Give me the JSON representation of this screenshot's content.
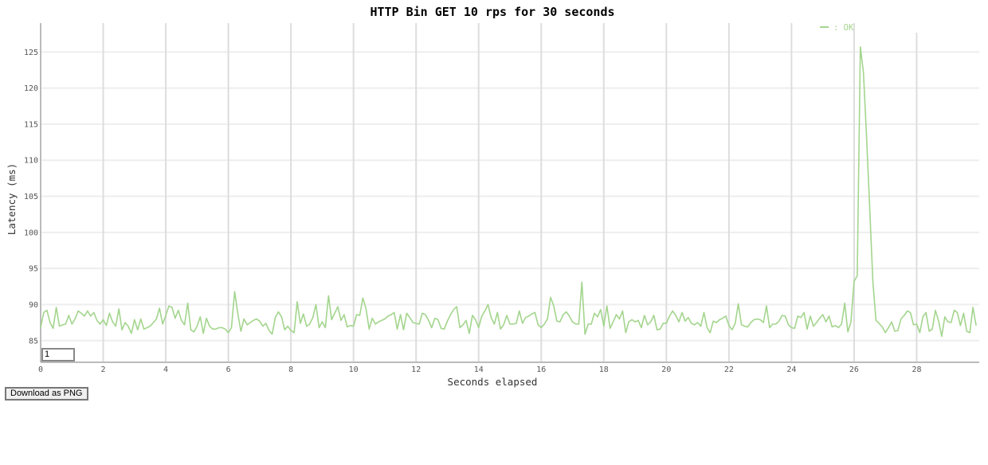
{
  "controls": {
    "smoothing_value": "1",
    "download_label": "Download as PNG"
  },
  "colors": {
    "series_ok": "#a3d58d",
    "grid_major": "#dddddd",
    "grid_minor": "#eeeeee",
    "axis": "#bbbbbb"
  },
  "chart_data": {
    "type": "line",
    "title": "HTTP Bin GET 10 rps for 30 seconds",
    "xlabel": "Seconds elapsed",
    "ylabel": "Latency (ms)",
    "xlim": [
      0,
      30
    ],
    "ylim": [
      82,
      129
    ],
    "xticks": [
      "0",
      "2",
      "4",
      "6",
      "8",
      "10",
      "12",
      "14",
      "16",
      "18",
      "20",
      "22",
      "24",
      "26",
      "28"
    ],
    "yticks": [
      "85",
      "90",
      "95",
      "100",
      "105",
      "110",
      "115",
      "120",
      "125"
    ],
    "grid": true,
    "legend_position": "top-right",
    "legend": [
      {
        "name": "OK"
      }
    ],
    "legend_prefix": ": OK",
    "series": [
      {
        "name": "OK",
        "x": [
          0,
          0.1,
          0.2,
          0.3,
          0.4,
          0.5,
          0.6,
          0.7,
          0.8,
          0.9,
          1.0,
          1.1,
          1.2,
          1.3,
          1.4,
          1.5,
          1.6,
          1.7,
          1.8,
          1.9,
          2.0,
          2.1,
          2.2,
          2.3,
          2.4,
          2.5,
          2.6,
          2.7,
          2.8,
          2.9,
          3.0,
          3.1,
          3.2,
          3.3,
          3.4,
          3.5,
          3.6,
          3.7,
          3.8,
          3.9,
          4.0,
          4.1,
          4.2,
          4.3,
          4.4,
          4.5,
          4.6,
          4.7,
          4.8,
          4.9,
          5.0,
          5.1,
          5.2,
          5.3,
          5.4,
          5.5,
          5.6,
          5.7,
          5.8,
          5.9,
          6.0,
          6.1,
          6.2,
          6.3,
          6.4,
          6.5,
          6.6,
          6.7,
          6.8,
          6.9,
          7.0,
          7.1,
          7.2,
          7.3,
          7.4,
          7.5,
          7.6,
          7.7,
          7.8,
          7.9,
          8.0,
          8.1,
          8.2,
          8.3,
          8.4,
          8.5,
          8.6,
          8.7,
          8.8,
          8.9,
          9.0,
          9.1,
          9.2,
          9.3,
          9.4,
          9.5,
          9.6,
          9.7,
          9.8,
          9.9,
          10.0,
          10.1,
          10.2,
          10.3,
          10.4,
          10.5,
          10.6,
          10.7,
          10.8,
          10.9,
          11.0,
          11.1,
          11.2,
          11.3,
          11.4,
          11.5,
          11.6,
          11.7,
          11.8,
          11.9,
          12.0,
          12.1,
          12.2,
          12.3,
          12.4,
          12.5,
          12.6,
          12.7,
          12.8,
          12.9,
          13.0,
          13.1,
          13.2,
          13.3,
          13.4,
          13.5,
          13.6,
          13.7,
          13.8,
          13.9,
          14.0,
          14.1,
          14.2,
          14.3,
          14.4,
          14.5,
          14.6,
          14.7,
          14.8,
          14.9,
          15.0,
          15.1,
          15.2,
          15.3,
          15.4,
          15.5,
          15.6,
          15.7,
          15.8,
          15.9,
          16.0,
          16.1,
          16.2,
          16.3,
          16.4,
          16.5,
          16.6,
          16.7,
          16.8,
          16.9,
          17.0,
          17.1,
          17.2,
          17.3,
          17.4,
          17.5,
          17.6,
          17.7,
          17.8,
          17.9,
          18.0,
          18.1,
          18.2,
          18.3,
          18.4,
          18.5,
          18.6,
          18.7,
          18.8,
          18.9,
          19.0,
          19.1,
          19.2,
          19.3,
          19.4,
          19.5,
          19.6,
          19.7,
          19.8,
          19.9,
          20.0,
          20.1,
          20.2,
          20.3,
          20.4,
          20.5,
          20.6,
          20.7,
          20.8,
          20.9,
          21.0,
          21.1,
          21.2,
          21.3,
          21.4,
          21.5,
          21.6,
          21.7,
          21.8,
          21.9,
          22.0,
          22.1,
          22.2,
          22.3,
          22.4,
          22.5,
          22.6,
          22.7,
          22.8,
          22.9,
          23.0,
          23.1,
          23.2,
          23.3,
          23.4,
          23.5,
          23.6,
          23.7,
          23.8,
          23.9,
          24.0,
          24.1,
          24.2,
          24.3,
          24.4,
          24.5,
          24.6,
          24.7,
          24.8,
          24.9,
          25.0,
          25.1,
          25.2,
          25.3,
          25.4,
          25.5,
          25.6,
          25.7,
          25.8,
          25.9,
          26.0,
          26.1,
          26.2,
          26.3,
          26.4,
          26.5,
          26.6,
          26.7,
          26.8,
          26.9,
          27.0,
          27.1,
          27.2,
          27.3,
          27.4,
          27.5,
          27.6,
          27.7,
          27.8,
          27.9,
          28.0,
          28.1,
          28.2,
          28.3,
          28.4,
          28.5,
          28.6,
          28.7,
          28.8,
          28.9,
          29.0,
          29.1,
          29.2,
          29.3,
          29.4,
          29.5,
          29.6,
          29.7,
          29.8,
          29.9
        ],
        "y": [
          86.8,
          88.9,
          89.2,
          87.5,
          86.7,
          89.6,
          87.0,
          87.2,
          87.3,
          88.5,
          87.3,
          88.0,
          89.1,
          88.8,
          88.4,
          89.1,
          88.4,
          88.9,
          87.8,
          87.3,
          87.9,
          87.1,
          88.8,
          87.6,
          87.0,
          89.4,
          86.5,
          87.5,
          87.0,
          86.0,
          87.9,
          86.5,
          88.0,
          86.6,
          86.8,
          87.0,
          87.5,
          88.0,
          89.5,
          87.3,
          88.5,
          89.8,
          89.6,
          88.1,
          89.2,
          87.8,
          87.2,
          90.2,
          86.5,
          86.2,
          87.0,
          88.3,
          86.0,
          88.1,
          87.0,
          86.6,
          86.6,
          86.8,
          86.8,
          86.6,
          86.1,
          86.8,
          91.8,
          88.8,
          86.3,
          88.0,
          87.2,
          87.5,
          87.8,
          88.0,
          87.7,
          87.0,
          87.4,
          86.4,
          85.9,
          88.2,
          89.0,
          88.3,
          86.5,
          87.0,
          86.4,
          86.1,
          90.4,
          87.4,
          88.7,
          87.0,
          87.3,
          88.2,
          90.0,
          86.8,
          87.6,
          86.8,
          91.2,
          87.9,
          88.8,
          89.7,
          87.8,
          88.6,
          86.9,
          87.1,
          87.0,
          88.6,
          88.5,
          90.9,
          89.4,
          86.6,
          88.1,
          87.3,
          87.6,
          87.8,
          88.0,
          88.4,
          88.6,
          88.9,
          86.6,
          88.6,
          86.5,
          88.8,
          88.2,
          87.5,
          87.4,
          87.3,
          88.8,
          88.6,
          87.8,
          86.8,
          88.1,
          87.9,
          86.7,
          86.6,
          87.7,
          88.6,
          89.3,
          89.7,
          86.8,
          87.2,
          87.8,
          86.0,
          88.5,
          87.9,
          86.8,
          88.4,
          89.1,
          90.0,
          88.2,
          87.3,
          88.9,
          86.6,
          87.2,
          88.5,
          87.3,
          87.3,
          87.4,
          89.1,
          87.4,
          88.2,
          88.4,
          88.7,
          88.9,
          87.2,
          86.8,
          87.3,
          88.0,
          91.0,
          89.8,
          87.7,
          87.6,
          88.6,
          89.0,
          88.4,
          87.6,
          87.3,
          87.3,
          93.1,
          85.9,
          87.3,
          87.3,
          88.8,
          88.3,
          89.3,
          87.0,
          89.8,
          86.7,
          87.6,
          88.6,
          88.0,
          89.1,
          86.1,
          87.6,
          87.9,
          87.6,
          87.8,
          86.8,
          88.5,
          87.2,
          87.6,
          88.5,
          86.5,
          86.6,
          87.4,
          87.4,
          88.4,
          89.1,
          88.5,
          87.6,
          88.9,
          87.7,
          88.2,
          87.4,
          87.2,
          87.5,
          87.0,
          88.9,
          86.8,
          86.1,
          87.7,
          87.5,
          87.9,
          88.1,
          88.4,
          87.1,
          86.5,
          87.4,
          90.1,
          87.2,
          87.0,
          86.9,
          87.5,
          87.9,
          88.0,
          87.9,
          87.5,
          89.8,
          86.8,
          87.3,
          87.3,
          87.7,
          88.5,
          88.4,
          87.2,
          86.8,
          86.7,
          88.4,
          88.2,
          88.9,
          86.6,
          88.4,
          87.0,
          87.5,
          88.1,
          88.6,
          87.6,
          88.4,
          86.9,
          87.1,
          86.8,
          87.3,
          90.2,
          86.2,
          87.6,
          93.2,
          94.0,
          125.7,
          122.1,
          113.2,
          103.2,
          93.2,
          87.8,
          87.4,
          86.9,
          86.1,
          86.8,
          87.6,
          86.3,
          86.4,
          88.0,
          88.5,
          89.1,
          88.9,
          87.2,
          87.3,
          86.1,
          88.3,
          88.9,
          86.3,
          86.6,
          89.2,
          87.7,
          85.6,
          88.3,
          87.6,
          87.5,
          89.2,
          88.9,
          87.1,
          88.8,
          86.3,
          86.1,
          89.6,
          87.1
        ]
      }
    ]
  }
}
